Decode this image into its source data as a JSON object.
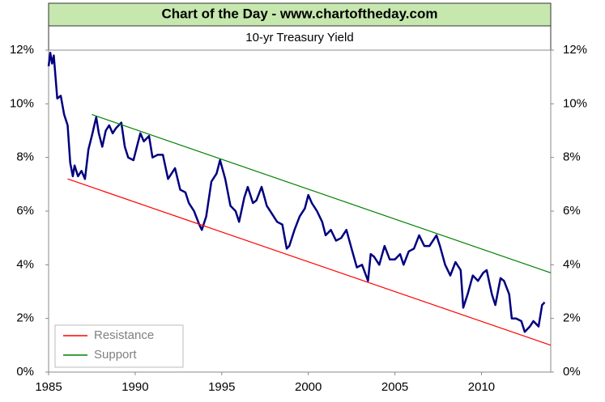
{
  "chart_data": {
    "type": "line",
    "title": "Chart of the Day - www.chartoftheday.com",
    "subtitle": "10-yr Treasury Yield",
    "xlim": [
      1985,
      2014
    ],
    "xticks": [
      1985,
      1990,
      1995,
      2000,
      2005,
      2010
    ],
    "ylim": [
      0,
      12
    ],
    "yticks": [
      {
        "value": 0,
        "label": "0%"
      },
      {
        "value": 2,
        "label": "2%"
      },
      {
        "value": 4,
        "label": "4%"
      },
      {
        "value": 6,
        "label": "6%"
      },
      {
        "value": 8,
        "label": "8%"
      },
      {
        "value": 10,
        "label": "10%"
      },
      {
        "value": 12,
        "label": "12%"
      }
    ],
    "y2lim": [
      0,
      12
    ],
    "y2ticks": [
      {
        "value": 0,
        "label": "0%"
      },
      {
        "value": 2,
        "label": "2%"
      },
      {
        "value": 4,
        "label": "4%"
      },
      {
        "value": 6,
        "label": "6%"
      },
      {
        "value": 8,
        "label": "8%"
      },
      {
        "value": 10,
        "label": "10%"
      },
      {
        "value": 12,
        "label": "12%"
      }
    ],
    "legend": "lower left",
    "series": [
      {
        "color": "#000080",
        "x": [
          1985.0,
          1985.1,
          1985.2,
          1985.3,
          1985.5,
          1985.7,
          1985.9,
          1986.1,
          1986.25,
          1986.4,
          1986.5,
          1986.7,
          1986.9,
          1987.1,
          1987.3,
          1987.5,
          1987.75,
          1987.9,
          1988.1,
          1988.3,
          1988.5,
          1988.7,
          1988.9,
          1989.2,
          1989.4,
          1989.6,
          1989.9,
          1990.1,
          1990.3,
          1990.5,
          1990.8,
          1991.0,
          1991.3,
          1991.6,
          1991.9,
          1992.1,
          1992.3,
          1992.6,
          1992.9,
          1993.1,
          1993.4,
          1993.7,
          1993.85,
          1994.1,
          1994.4,
          1994.7,
          1994.9,
          1995.2,
          1995.5,
          1995.8,
          1996.0,
          1996.3,
          1996.5,
          1996.8,
          1997.0,
          1997.3,
          1997.6,
          1997.9,
          1998.2,
          1998.5,
          1998.75,
          1998.9,
          1999.2,
          1999.5,
          1999.8,
          2000.0,
          2000.2,
          2000.5,
          2000.8,
          2001.0,
          2001.3,
          2001.6,
          2001.9,
          2002.2,
          2002.5,
          2002.8,
          2003.1,
          2003.45,
          2003.6,
          2003.8,
          2004.1,
          2004.4,
          2004.7,
          2005.0,
          2005.3,
          2005.5,
          2005.8,
          2006.1,
          2006.4,
          2006.7,
          2007.0,
          2007.4,
          2007.6,
          2007.9,
          2008.2,
          2008.5,
          2008.8,
          2008.95,
          2009.2,
          2009.5,
          2009.8,
          2010.1,
          2010.3,
          2010.6,
          2010.8,
          2011.1,
          2011.3,
          2011.6,
          2011.75,
          2012.0,
          2012.3,
          2012.5,
          2012.8,
          2013.0,
          2013.3,
          2013.5,
          2013.65
        ],
        "values": [
          11.4,
          11.9,
          11.5,
          11.8,
          10.2,
          10.3,
          9.6,
          9.2,
          7.8,
          7.3,
          7.7,
          7.3,
          7.5,
          7.2,
          8.3,
          8.8,
          9.5,
          8.9,
          8.4,
          9.0,
          9.2,
          8.9,
          9.1,
          9.3,
          8.4,
          8.0,
          7.9,
          8.4,
          8.9,
          8.6,
          8.8,
          8.0,
          8.1,
          8.1,
          7.2,
          7.4,
          7.6,
          6.8,
          6.7,
          6.3,
          6.0,
          5.5,
          5.3,
          5.8,
          7.1,
          7.4,
          7.9,
          7.2,
          6.2,
          6.0,
          5.6,
          6.5,
          6.9,
          6.3,
          6.4,
          6.9,
          6.2,
          5.9,
          5.6,
          5.5,
          4.6,
          4.7,
          5.3,
          5.8,
          6.1,
          6.6,
          6.3,
          6.0,
          5.6,
          5.1,
          5.3,
          4.9,
          5.0,
          5.3,
          4.6,
          3.9,
          4.0,
          3.4,
          4.4,
          4.3,
          4.0,
          4.7,
          4.2,
          4.2,
          4.4,
          4.0,
          4.5,
          4.6,
          5.1,
          4.7,
          4.7,
          5.1,
          4.7,
          4.0,
          3.6,
          4.1,
          3.8,
          2.4,
          2.9,
          3.6,
          3.4,
          3.7,
          3.8,
          2.9,
          2.5,
          3.5,
          3.4,
          2.9,
          2.0,
          2.0,
          1.9,
          1.5,
          1.7,
          1.9,
          1.7,
          2.5,
          2.6
        ]
      },
      {
        "name": "Resistance",
        "color": "#ff0000",
        "x": [
          1986.1,
          2014
        ],
        "values": [
          7.2,
          1.0
        ]
      },
      {
        "name": "Support",
        "color": "#008000",
        "x": [
          1987.5,
          2014
        ],
        "values": [
          9.6,
          3.7
        ]
      }
    ]
  }
}
